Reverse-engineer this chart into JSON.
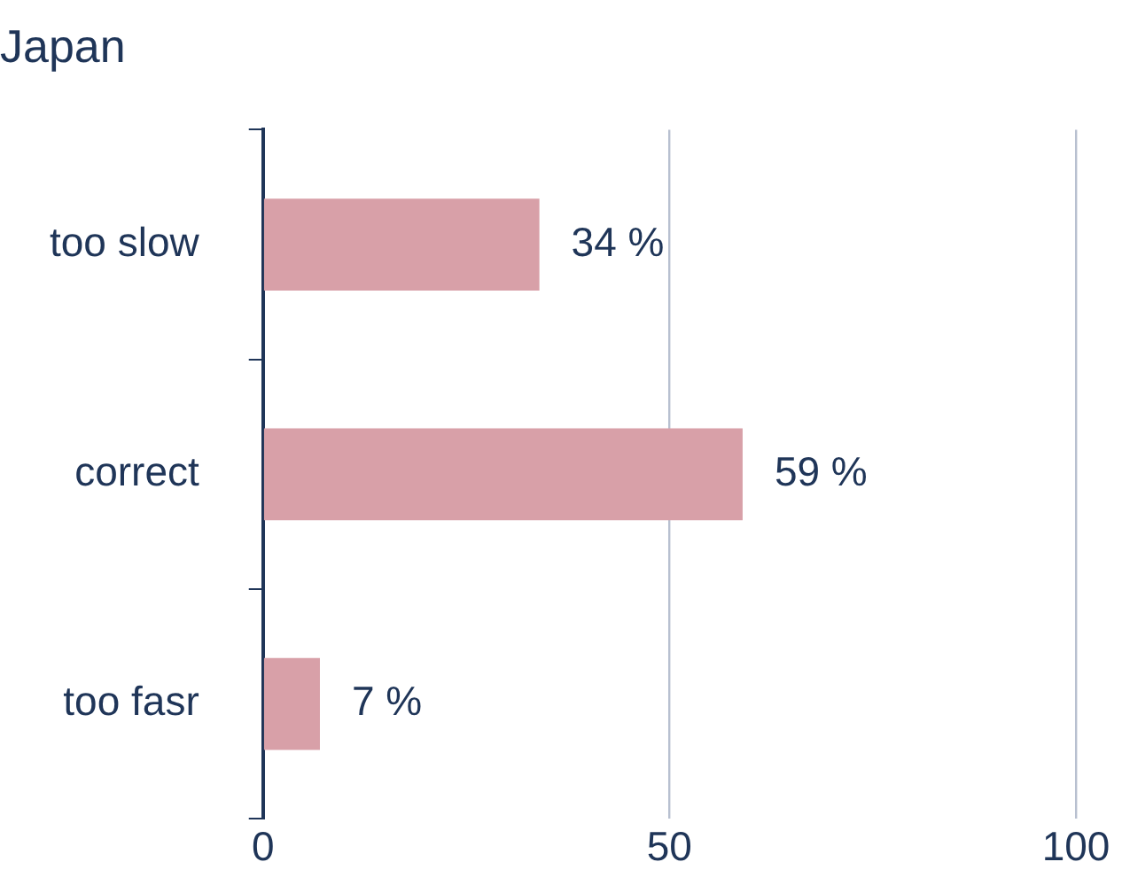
{
  "chart_data": {
    "type": "bar",
    "orientation": "horizontal",
    "title": "Japan",
    "categories": [
      "too slow",
      "correct",
      "too fasr"
    ],
    "values": [
      34,
      59,
      7
    ],
    "value_labels": [
      "34 %",
      "59 %",
      "7 %"
    ],
    "color": "#d8a0a8",
    "xlim": [
      0,
      100
    ],
    "xticks": [
      0,
      50,
      100
    ],
    "grid": "x",
    "legend": false
  }
}
